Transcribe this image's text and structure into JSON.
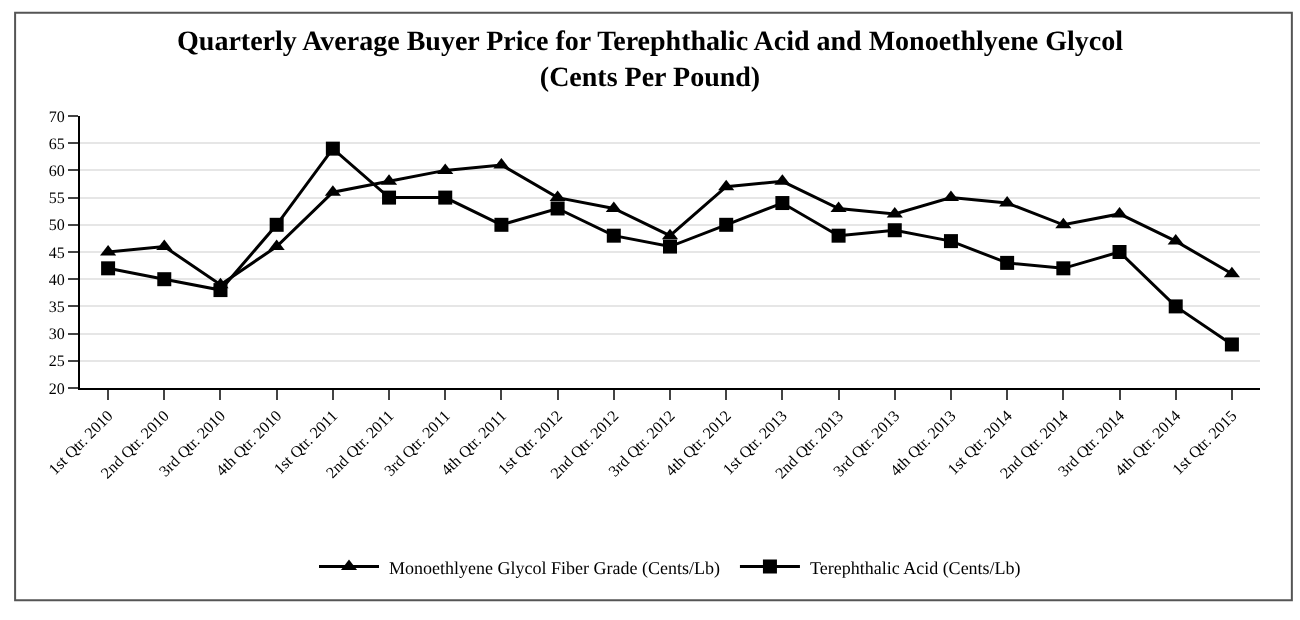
{
  "chart_data": {
    "type": "line",
    "title": "Quarterly Average Buyer Price for Terephthalic Acid and Monoethlyene Glycol",
    "subtitle": "(Cents Per Pound)",
    "categories": [
      "1st Qtr. 2010",
      "2nd Qtr. 2010",
      "3rd Qtr. 2010",
      "4th Qtr. 2010",
      "1st Qtr. 2011",
      "2nd Qtr. 2011",
      "3rd Qtr. 2011",
      "4th Qtr. 2011",
      "1st Qtr. 2012",
      "2nd Qtr. 2012",
      "3rd Qtr. 2012",
      "4th Qtr. 2012",
      "1st Qtr. 2013",
      "2nd Qtr. 2013",
      "3rd Qtr. 2013",
      "4th Qtr. 2013",
      "1st Qtr. 2014",
      "2nd Qtr. 2014",
      "3rd Qtr. 2014",
      "4th Qtr. 2014",
      "1st Qtr. 2015"
    ],
    "series": [
      {
        "name": "Monoethlyene Glycol Fiber Grade (Cents/Lb)",
        "color": "#000000",
        "marker": "triangle",
        "values": [
          45,
          46,
          39,
          46,
          56,
          58,
          60,
          61,
          55,
          53,
          48,
          57,
          58,
          53,
          52,
          55,
          54,
          50,
          52,
          47,
          41
        ]
      },
      {
        "name": "Terephthalic Acid (Cents/Lb)",
        "color": "#000000",
        "marker": "square",
        "values": [
          42,
          40,
          38,
          50,
          64,
          55,
          55,
          50,
          53,
          48,
          46,
          50,
          54,
          48,
          49,
          47,
          43,
          42,
          45,
          35,
          28
        ]
      }
    ],
    "ylim": [
      20,
      70
    ],
    "yticks": [
      20,
      25,
      30,
      35,
      40,
      45,
      50,
      55,
      60,
      65,
      70
    ],
    "grid": "y",
    "legend": "bottom",
    "line_style": "solid"
  }
}
